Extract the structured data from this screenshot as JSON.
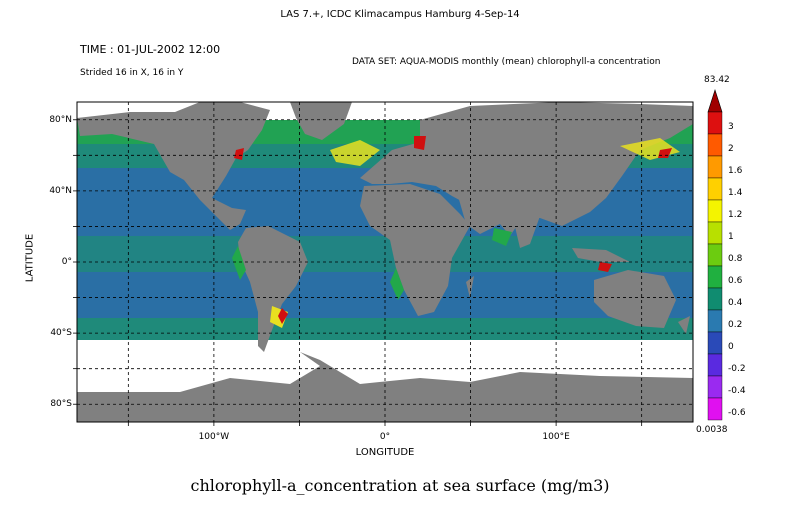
{
  "header": "LAS 7.+, ICDC Klimacampus Hamburg   4-Sep-14",
  "time": "TIME : 01-JUL-2002 12:00",
  "stride": "Strided 16 in X, 16 in Y",
  "dataset": "DATA SET: AQUA-MODIS monthly (mean) chlorophyll-a concentration",
  "title": "chlorophyll-a_concentration at sea surface (mg/m3)",
  "axes": {
    "y_label": "LATITUDE",
    "x_label": "LONGITUDE",
    "y_ticks": [
      {
        "value": 80,
        "label": "80°N"
      },
      {
        "value": 40,
        "label": "40°N"
      },
      {
        "value": 0,
        "label": "0°"
      },
      {
        "value": -40,
        "label": "40°S"
      },
      {
        "value": -80,
        "label": "80°S"
      }
    ],
    "x_ticks": [
      {
        "value": -100,
        "label": "100°W"
      },
      {
        "value": 0,
        "label": "0°"
      },
      {
        "value": 100,
        "label": "100°E"
      }
    ],
    "lon_range": [
      -180,
      180
    ],
    "lat_range": [
      -90,
      90
    ],
    "grid": true
  },
  "colorbar": {
    "max_label": "83.42",
    "min_label": "0.0038",
    "levels": [
      "3",
      "2",
      "1.6",
      "1.4",
      "1.2",
      "1",
      "0.8",
      "0.6",
      "0.4",
      "0.2",
      "0",
      "-0.2",
      "-0.4",
      "-0.6"
    ],
    "colors": [
      "#a00000",
      "#dd1010",
      "#ff5a00",
      "#ff9a00",
      "#ffd000",
      "#f4f400",
      "#b8e000",
      "#6ccc10",
      "#20b040",
      "#108c70",
      "#2a7ab0",
      "#2a4ab8",
      "#5a2ae0",
      "#9a2af0",
      "#e010f0"
    ]
  },
  "map_colors": {
    "land": "#808080",
    "ocean_low": "#2a6fa5",
    "ocean_mid": "#1f8a7a",
    "coastal": "#22a84a",
    "high": "#e8e020",
    "very_high": "#d01010",
    "no_data": "#ffffff"
  }
}
